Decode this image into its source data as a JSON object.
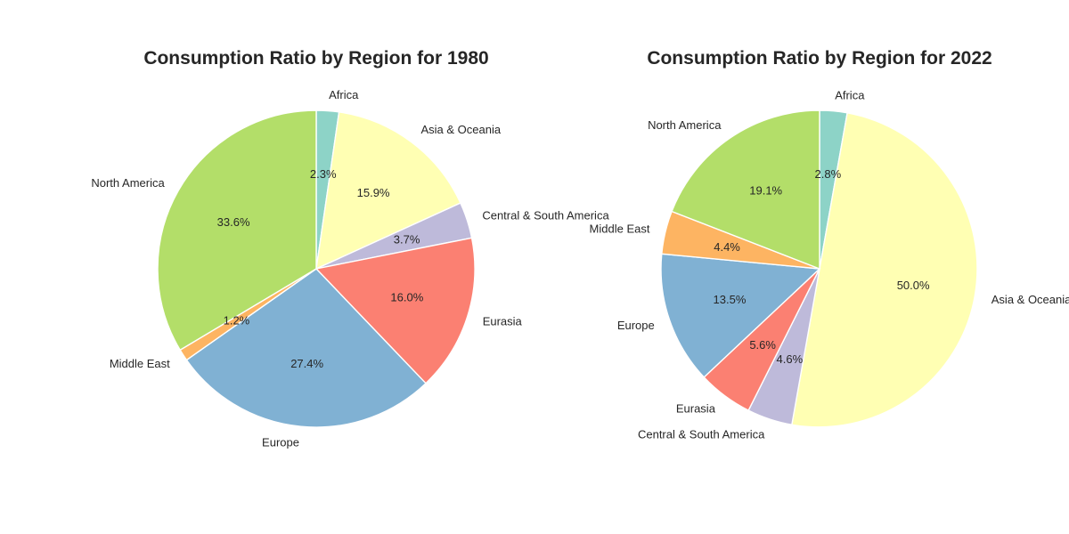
{
  "chart_data": [
    {
      "type": "pie",
      "title": "Consumption Ratio by Region for 1980",
      "start_angle_deg": 90,
      "direction": "clockwise",
      "slices": [
        {
          "label": "Africa",
          "value": 2.3,
          "pct_text": "2.3%",
          "color": "#8dd3c7"
        },
        {
          "label": "Asia & Oceania",
          "value": 15.9,
          "pct_text": "15.9%",
          "color": "#ffffb3"
        },
        {
          "label": "Central & South America",
          "value": 3.7,
          "pct_text": "3.7%",
          "color": "#bebada"
        },
        {
          "label": "Eurasia",
          "value": 16.0,
          "pct_text": "16.0%",
          "color": "#fb8072"
        },
        {
          "label": "Europe",
          "value": 27.4,
          "pct_text": "27.4%",
          "color": "#80b1d3"
        },
        {
          "label": "Middle East",
          "value": 1.2,
          "pct_text": "1.2%",
          "color": "#fdb462"
        },
        {
          "label": "North America",
          "value": 33.6,
          "pct_text": "33.6%",
          "color": "#b3de69"
        }
      ]
    },
    {
      "type": "pie",
      "title": "Consumption Ratio by Region for 2022",
      "start_angle_deg": 90,
      "direction": "clockwise",
      "slices": [
        {
          "label": "Africa",
          "value": 2.8,
          "pct_text": "2.8%",
          "color": "#8dd3c7"
        },
        {
          "label": "Asia & Oceania",
          "value": 50.0,
          "pct_text": "50.0%",
          "color": "#ffffb3"
        },
        {
          "label": "Central & South America",
          "value": 4.6,
          "pct_text": "4.6%",
          "color": "#bebada"
        },
        {
          "label": "Eurasia",
          "value": 5.6,
          "pct_text": "5.6%",
          "color": "#fb8072"
        },
        {
          "label": "Europe",
          "value": 13.5,
          "pct_text": "13.5%",
          "color": "#80b1d3"
        },
        {
          "label": "Middle East",
          "value": 4.4,
          "pct_text": "4.4%",
          "color": "#fdb462"
        },
        {
          "label": "North America",
          "value": 19.1,
          "pct_text": "19.1%",
          "color": "#b3de69"
        }
      ]
    }
  ]
}
